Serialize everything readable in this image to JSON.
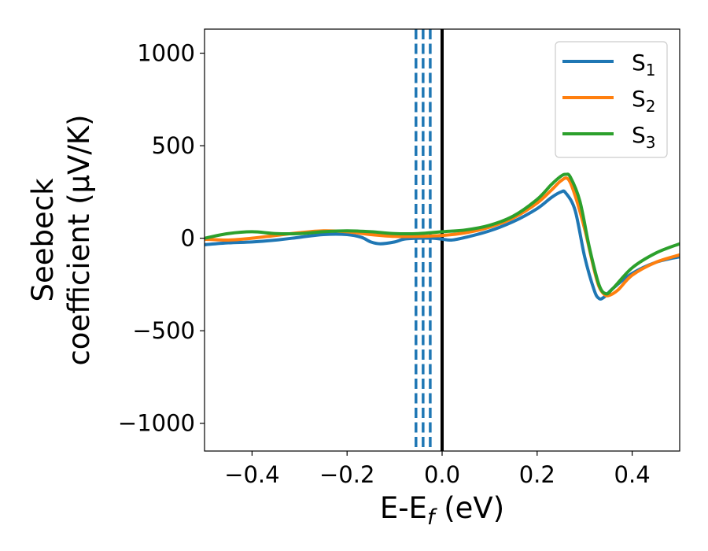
{
  "chart_data": {
    "type": "line",
    "title": "",
    "xlabel": {
      "base": "E-E",
      "sub": "f",
      "rest": " (eV)"
    },
    "ylabel": {
      "line1": "Seebeck",
      "line2": "coefficient  (μV/K)"
    },
    "xlim": [
      -0.5,
      0.5
    ],
    "ylim": [
      -1150,
      1130
    ],
    "xticks": [
      -0.4,
      -0.2,
      0.0,
      0.2,
      0.4
    ],
    "xtick_labels": [
      "−0.4",
      "−0.2",
      "0.0",
      "0.2",
      "0.4"
    ],
    "yticks": [
      -1000,
      -500,
      0,
      500,
      1000
    ],
    "ytick_labels": [
      "−1000",
      "−500",
      "0",
      "500",
      "1000"
    ],
    "grid": false,
    "legend_position": "top-right",
    "vlines": [
      {
        "x": -0.055,
        "style": "dashed",
        "color": "#1f77b4"
      },
      {
        "x": -0.04,
        "style": "dashed",
        "color": "#1f77b4"
      },
      {
        "x": -0.025,
        "style": "dashed",
        "color": "#1f77b4"
      },
      {
        "x": 0.0,
        "style": "solid",
        "color": "#000000"
      }
    ],
    "series": [
      {
        "name": "S",
        "sub": "1",
        "color": "#1f77b4",
        "x": [
          -0.5,
          -0.45,
          -0.4,
          -0.35,
          -0.3,
          -0.25,
          -0.2,
          -0.17,
          -0.15,
          -0.13,
          -0.1,
          -0.08,
          -0.05,
          -0.02,
          0.0,
          0.02,
          0.05,
          0.1,
          0.15,
          0.2,
          0.23,
          0.25,
          0.26,
          0.28,
          0.3,
          0.32,
          0.33,
          0.34,
          0.36,
          0.4,
          0.45,
          0.5
        ],
        "y": [
          -35,
          -25,
          -20,
          -10,
          5,
          20,
          20,
          5,
          -20,
          -30,
          -20,
          -5,
          0,
          0,
          -5,
          -10,
          5,
          40,
          90,
          160,
          220,
          250,
          245,
          150,
          -100,
          -280,
          -325,
          -320,
          -270,
          -190,
          -130,
          -100
        ]
      },
      {
        "name": "S",
        "sub": "2",
        "color": "#ff7f0e",
        "x": [
          -0.5,
          -0.45,
          -0.4,
          -0.35,
          -0.3,
          -0.25,
          -0.2,
          -0.15,
          -0.1,
          -0.05,
          0.0,
          0.05,
          0.1,
          0.15,
          0.2,
          0.23,
          0.25,
          0.265,
          0.28,
          0.3,
          0.32,
          0.33,
          0.34,
          0.35,
          0.37,
          0.4,
          0.45,
          0.5
        ],
        "y": [
          -5,
          -10,
          0,
          15,
          30,
          40,
          35,
          20,
          10,
          10,
          15,
          30,
          60,
          110,
          190,
          260,
          310,
          320,
          230,
          50,
          -170,
          -260,
          -300,
          -310,
          -280,
          -200,
          -130,
          -90
        ]
      },
      {
        "name": "S",
        "sub": "3",
        "color": "#2ca02c",
        "x": [
          -0.5,
          -0.45,
          -0.4,
          -0.35,
          -0.3,
          -0.25,
          -0.2,
          -0.15,
          -0.1,
          -0.05,
          0.0,
          0.05,
          0.1,
          0.15,
          0.2,
          0.23,
          0.25,
          0.26,
          0.27,
          0.29,
          0.31,
          0.33,
          0.345,
          0.36,
          0.4,
          0.45,
          0.5
        ],
        "y": [
          0,
          25,
          35,
          25,
          25,
          35,
          40,
          35,
          25,
          25,
          35,
          45,
          70,
          120,
          210,
          290,
          335,
          345,
          330,
          200,
          -50,
          -250,
          -300,
          -270,
          -160,
          -80,
          -30
        ]
      }
    ]
  }
}
